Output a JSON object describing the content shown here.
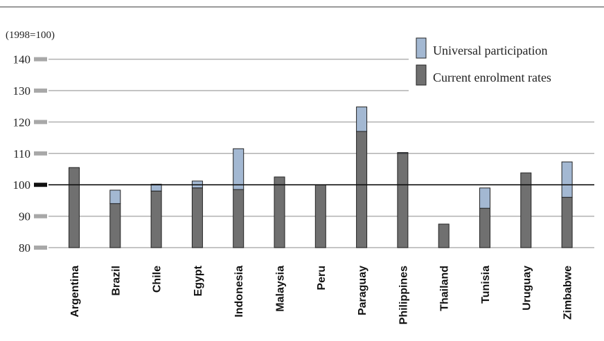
{
  "chart_data": {
    "type": "bar",
    "unit_label": "(1998=100)",
    "ylim": [
      80,
      145
    ],
    "yticks": [
      80,
      90,
      100,
      110,
      120,
      130,
      140
    ],
    "reference_line": 100,
    "grid": true,
    "legend_position": "top-right",
    "categories": [
      "Argentina",
      "Brazil",
      "Chile",
      "Egypt",
      "Indonesia",
      "Malaysia",
      "Peru",
      "Paraguay",
      "Philippines",
      "Thailand",
      "Tunisia",
      "Uruguay",
      "Zimbabwe"
    ],
    "series": [
      {
        "name": "Current enrolment rates",
        "color": "#707070",
        "values": [
          105.5,
          94,
          98,
          99,
          98.5,
          102.5,
          100,
          117,
          110,
          87.5,
          92.5,
          103.8,
          96
        ]
      },
      {
        "name": "Universal participation",
        "color": "#a3b8d2",
        "values": [
          105.5,
          98.3,
          100.2,
          101.2,
          111.5,
          102.5,
          100,
          124.8,
          110.3,
          87.5,
          99,
          103.8,
          107.3
        ]
      }
    ]
  }
}
